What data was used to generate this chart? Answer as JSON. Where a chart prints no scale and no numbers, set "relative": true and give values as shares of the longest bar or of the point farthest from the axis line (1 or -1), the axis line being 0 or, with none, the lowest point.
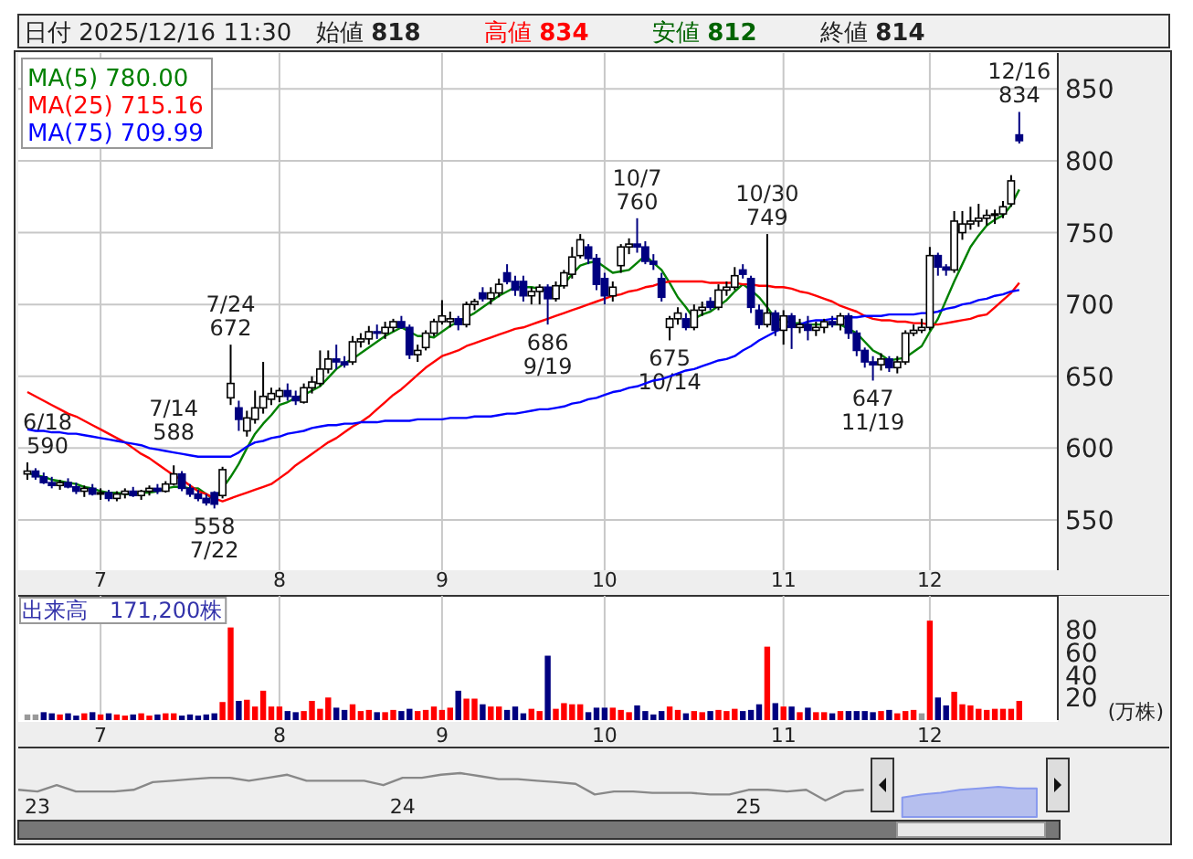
{
  "chart_data": [
    {
      "type": "candlestick",
      "annotations": [
        "日付 2025/12/16 11:30",
        "始値 **818**",
        "高値 **834**",
        "安値 **812**",
        "終値 **814**",
        "6/18\n590",
        "7/14\n588",
        "558\n7/22",
        "7/24\n672",
        "686\n9/19",
        "10/7\n760",
        "675\n10/14",
        "10/30\n749",
        "647\n11/19",
        "12/16\n834"
      ],
      "categories": [
        null,
        null,
        null,
        null,
        null,
        null,
        null,
        null,
        null,
        "7",
        null,
        null,
        null,
        null,
        null,
        null,
        null,
        null,
        null,
        null,
        null,
        null,
        null,
        null,
        null,
        null,
        null,
        null,
        null,
        null,
        null,
        "8",
        null,
        null,
        null,
        null,
        null,
        null,
        null,
        null,
        null,
        null,
        null,
        null,
        null,
        null,
        null,
        null,
        null,
        null,
        null,
        "9",
        null,
        null,
        null,
        null,
        null,
        null,
        null,
        null,
        null,
        null,
        null,
        null,
        null,
        null,
        null,
        null,
        null,
        null,
        null,
        "10",
        null,
        null,
        null,
        null,
        null,
        null,
        null,
        null,
        null,
        null,
        null,
        null,
        null,
        null,
        null,
        null,
        null,
        null,
        null,
        null,
        null,
        "11",
        null,
        null,
        null,
        null,
        null,
        null,
        null,
        null,
        null,
        null,
        null,
        null,
        null,
        null,
        null,
        null,
        null,
        "12",
        null,
        null,
        null,
        null,
        null,
        null,
        null,
        null,
        null,
        null,
        null
      ],
      "ohlc": [
        [
          582,
          590,
          578,
          584
        ],
        [
          584,
          586,
          578,
          580
        ],
        [
          580,
          583,
          575,
          576
        ],
        [
          576,
          580,
          572,
          574
        ],
        [
          574,
          578,
          571,
          576
        ],
        [
          576,
          579,
          572,
          573
        ],
        [
          573,
          576,
          568,
          570
        ],
        [
          570,
          574,
          566,
          572
        ],
        [
          572,
          575,
          567,
          568
        ],
        [
          568,
          572,
          564,
          569
        ],
        [
          569,
          571,
          563,
          565
        ],
        [
          565,
          570,
          563,
          568
        ],
        [
          568,
          572,
          565,
          570
        ],
        [
          570,
          573,
          566,
          567
        ],
        [
          567,
          571,
          564,
          570
        ],
        [
          570,
          574,
          567,
          572
        ],
        [
          572,
          575,
          568,
          570
        ],
        [
          570,
          577,
          569,
          575
        ],
        [
          575,
          588,
          574,
          582
        ],
        [
          582,
          584,
          570,
          572
        ],
        [
          572,
          575,
          566,
          568
        ],
        [
          568,
          571,
          563,
          565
        ],
        [
          565,
          568,
          560,
          562
        ],
        [
          569,
          570,
          558,
          561
        ],
        [
          567,
          587,
          565,
          585
        ],
        [
          635,
          672,
          630,
          645
        ],
        [
          628,
          633,
          612,
          620
        ],
        [
          612,
          626,
          608,
          621
        ],
        [
          620,
          640,
          617,
          628
        ],
        [
          628,
          660,
          624,
          636
        ],
        [
          634,
          642,
          630,
          638
        ],
        [
          636,
          642,
          632,
          640
        ],
        [
          640,
          645,
          633,
          636
        ],
        [
          636,
          640,
          630,
          633
        ],
        [
          632,
          645,
          631,
          642
        ],
        [
          642,
          650,
          638,
          646
        ],
        [
          645,
          668,
          643,
          655
        ],
        [
          655,
          668,
          652,
          662
        ],
        [
          662,
          672,
          655,
          660
        ],
        [
          660,
          664,
          656,
          658
        ],
        [
          660,
          678,
          658,
          674
        ],
        [
          674,
          680,
          670,
          676
        ],
        [
          676,
          685,
          672,
          681
        ],
        [
          681,
          686,
          676,
          680
        ],
        [
          680,
          688,
          676,
          684
        ],
        [
          684,
          690,
          681,
          688
        ],
        [
          688,
          692,
          683,
          684
        ],
        [
          684,
          686,
          662,
          665
        ],
        [
          665,
          672,
          660,
          668
        ],
        [
          670,
          682,
          668,
          680
        ],
        [
          680,
          690,
          678,
          688
        ],
        [
          688,
          703,
          686,
          692
        ],
        [
          688,
          695,
          684,
          690
        ],
        [
          690,
          692,
          682,
          686
        ],
        [
          686,
          702,
          684,
          700
        ],
        [
          700,
          704,
          696,
          702
        ],
        [
          708,
          712,
          702,
          704
        ],
        [
          704,
          712,
          700,
          708
        ],
        [
          708,
          718,
          705,
          714
        ],
        [
          722,
          728,
          714,
          716
        ],
        [
          716,
          720,
          706,
          710
        ],
        [
          716,
          720,
          702,
          706
        ],
        [
          706,
          712,
          700,
          709
        ],
        [
          709,
          714,
          700,
          712
        ],
        [
          712,
          714,
          686,
          704
        ],
        [
          704,
          716,
          702,
          713
        ],
        [
          713,
          724,
          711,
          722
        ],
        [
          721,
          740,
          718,
          733
        ],
        [
          734,
          749,
          732,
          745
        ],
        [
          740,
          742,
          728,
          732
        ],
        [
          732,
          735,
          710,
          714
        ],
        [
          718,
          722,
          700,
          706
        ],
        [
          706,
          716,
          702,
          712
        ],
        [
          727,
          742,
          722,
          740
        ],
        [
          740,
          746,
          735,
          742
        ],
        [
          742,
          760,
          736,
          740
        ],
        [
          740,
          744,
          728,
          730
        ],
        [
          730,
          735,
          724,
          728
        ],
        [
          718,
          722,
          702,
          705
        ],
        [
          684,
          692,
          675,
          690
        ],
        [
          690,
          698,
          686,
          694
        ],
        [
          690,
          694,
          682,
          684
        ],
        [
          684,
          700,
          682,
          696
        ],
        [
          696,
          702,
          692,
          698
        ],
        [
          702,
          705,
          696,
          698
        ],
        [
          698,
          714,
          696,
          710
        ],
        [
          710,
          716,
          706,
          712
        ],
        [
          712,
          726,
          710,
          720
        ],
        [
          724,
          728,
          718,
          721
        ],
        [
          718,
          720,
          694,
          698
        ],
        [
          696,
          700,
          683,
          686
        ],
        [
          686,
          749,
          684,
          694
        ],
        [
          694,
          696,
          678,
          682
        ],
        [
          682,
          696,
          672,
          692
        ],
        [
          692,
          694,
          669,
          684
        ],
        [
          684,
          690,
          680,
          686
        ],
        [
          686,
          692,
          675,
          682
        ],
        [
          682,
          688,
          678,
          684
        ],
        [
          684,
          690,
          680,
          688
        ],
        [
          688,
          692,
          684,
          686
        ],
        [
          686,
          694,
          682,
          692
        ],
        [
          692,
          694,
          676,
          680
        ],
        [
          680,
          682,
          664,
          668
        ],
        [
          668,
          670,
          656,
          660
        ],
        [
          660,
          664,
          647,
          658
        ],
        [
          658,
          666,
          654,
          662
        ],
        [
          662,
          664,
          653,
          656
        ],
        [
          656,
          664,
          652,
          660
        ],
        [
          660,
          682,
          658,
          680
        ],
        [
          680,
          686,
          678,
          682
        ],
        [
          682,
          690,
          680,
          684
        ],
        [
          684,
          740,
          682,
          734
        ],
        [
          734,
          736,
          720,
          726
        ],
        [
          726,
          728,
          720,
          724
        ],
        [
          724,
          765,
          722,
          758
        ],
        [
          750,
          765,
          745,
          756
        ],
        [
          756,
          768,
          752,
          758
        ],
        [
          758,
          770,
          754,
          760
        ],
        [
          760,
          766,
          755,
          762
        ],
        [
          762,
          766,
          756,
          763
        ],
        [
          763,
          772,
          760,
          768
        ],
        [
          770,
          790,
          768,
          786
        ],
        [
          818,
          834,
          812,
          814
        ]
      ],
      "series": [
        {
          "name": "MA(5)  780.00",
          "type": "line",
          "color": "#008000",
          "values": [
            583,
            581,
            580,
            578,
            577,
            576,
            575,
            573,
            572,
            570,
            569,
            569,
            568,
            568,
            569,
            569,
            570,
            572,
            573,
            573,
            572,
            572,
            568,
            564,
            572,
            580,
            589,
            600,
            610,
            617,
            623,
            630,
            632,
            635,
            637,
            640,
            643,
            649,
            655,
            659,
            662,
            666,
            670,
            674,
            678,
            681,
            684,
            681,
            678,
            678,
            677,
            681,
            685,
            688,
            691,
            694,
            698,
            702,
            706,
            709,
            712,
            712,
            712,
            711,
            709,
            712,
            714,
            721,
            727,
            729,
            730,
            726,
            722,
            723,
            724,
            729,
            734,
            729,
            724,
            715,
            705,
            698,
            690,
            693,
            695,
            699,
            703,
            709,
            714,
            710,
            705,
            698,
            690,
            689,
            687,
            687,
            686,
            686,
            686,
            686,
            686,
            683,
            680,
            674,
            668,
            665,
            661,
            662,
            663,
            667,
            671,
            681,
            690,
            703,
            716,
            728,
            740,
            748,
            755,
            759,
            762,
            769,
            780
          ]
        },
        {
          "name": "MA(25)  715.16",
          "type": "line",
          "color": "#ff0000",
          "values": [
            639,
            636,
            633,
            630,
            627,
            624,
            622,
            619,
            616,
            613,
            610,
            607,
            604,
            600,
            596,
            593,
            589,
            585,
            581,
            578,
            574,
            570,
            568,
            565,
            563,
            565,
            567,
            569,
            571,
            573,
            575,
            579,
            583,
            588,
            592,
            596,
            600,
            604,
            607,
            611,
            615,
            618,
            622,
            627,
            632,
            637,
            641,
            646,
            651,
            656,
            660,
            664,
            666,
            668,
            671,
            673,
            675,
            677,
            679,
            681,
            683,
            684,
            686,
            688,
            690,
            692,
            694,
            696,
            698,
            700,
            702,
            704,
            706,
            707,
            709,
            710,
            712,
            713,
            715,
            716,
            716,
            716,
            716,
            716,
            715,
            715,
            715,
            715,
            714,
            714,
            713,
            713,
            712,
            712,
            711,
            709,
            708,
            706,
            704,
            702,
            699,
            697,
            695,
            692,
            690,
            689,
            689,
            688,
            688,
            687,
            687,
            686,
            686,
            687,
            688,
            689,
            690,
            692,
            693,
            698,
            703,
            708,
            715
          ]
        },
        {
          "name": "MA(75)  709.99",
          "type": "line",
          "color": "#0000ff",
          "values": [
            613,
            612,
            612,
            611,
            611,
            610,
            610,
            609,
            608,
            607,
            606,
            605,
            604,
            603,
            602,
            600,
            599,
            598,
            597,
            596,
            595,
            594,
            594,
            594,
            594,
            594,
            597,
            601,
            604,
            605,
            607,
            608,
            610,
            611,
            612,
            614,
            615,
            616,
            616,
            617,
            617,
            618,
            618,
            618,
            619,
            619,
            619,
            619,
            620,
            620,
            620,
            620,
            621,
            621,
            621,
            622,
            622,
            622,
            623,
            624,
            624,
            625,
            626,
            627,
            627,
            628,
            629,
            631,
            632,
            634,
            635,
            637,
            639,
            640,
            642,
            643,
            645,
            647,
            648,
            650,
            652,
            654,
            655,
            657,
            659,
            661,
            662,
            664,
            668,
            671,
            675,
            678,
            681,
            684,
            685,
            686,
            688,
            689,
            689,
            690,
            690,
            691,
            691,
            692,
            692,
            692,
            693,
            693,
            693,
            693,
            694,
            694,
            695,
            697,
            698,
            700,
            701,
            703,
            704,
            706,
            707,
            709,
            710
          ]
        }
      ],
      "ylim": [
        515,
        875
      ],
      "yticks": [
        550,
        600,
        650,
        700,
        750,
        800,
        850
      ],
      "grid": true,
      "legend": "top left"
    },
    {
      "type": "bar",
      "title": "出来高　171,200株",
      "ylabel": "(万株)",
      "categories": [
        null,
        null,
        null,
        null,
        null,
        null,
        null,
        null,
        null,
        "7",
        null,
        null,
        null,
        null,
        null,
        null,
        null,
        null,
        null,
        null,
        null,
        null,
        null,
        null,
        null,
        null,
        null,
        null,
        null,
        null,
        null,
        "8",
        null,
        null,
        null,
        null,
        null,
        null,
        null,
        null,
        null,
        null,
        null,
        null,
        null,
        null,
        null,
        null,
        null,
        null,
        null,
        "9",
        null,
        null,
        null,
        null,
        null,
        null,
        null,
        null,
        null,
        null,
        null,
        null,
        null,
        null,
        null,
        null,
        null,
        null,
        null,
        "10",
        null,
        null,
        null,
        null,
        null,
        null,
        null,
        null,
        null,
        null,
        null,
        null,
        null,
        null,
        null,
        null,
        null,
        null,
        null,
        null,
        null,
        "11",
        null,
        null,
        null,
        null,
        null,
        null,
        null,
        null,
        null,
        null,
        null,
        null,
        null,
        null,
        null,
        null,
        null,
        "12",
        null,
        null,
        null,
        null,
        null,
        null,
        null,
        null,
        null,
        null,
        null
      ],
      "values": [
        5,
        5,
        7,
        6,
        5,
        6,
        4,
        6,
        7,
        5,
        6,
        5,
        4,
        5,
        6,
        4,
        5,
        6,
        6,
        4,
        5,
        4,
        5,
        6,
        16,
        82,
        17,
        18,
        12,
        26,
        12,
        12,
        8,
        7,
        8,
        17,
        10,
        20,
        11,
        9,
        14,
        8,
        9,
        7,
        7,
        9,
        8,
        10,
        8,
        9,
        12,
        9,
        11,
        26,
        19,
        19,
        14,
        12,
        12,
        9,
        12,
        6,
        10,
        8,
        57,
        10,
        15,
        14,
        14,
        7,
        11,
        11,
        11,
        9,
        7,
        13,
        8,
        5,
        8,
        12,
        9,
        6,
        8,
        7,
        8,
        9,
        8,
        10,
        8,
        9,
        14,
        65,
        15,
        12,
        12,
        7,
        11,
        7,
        7,
        6,
        8,
        8,
        8,
        8,
        7,
        8,
        9,
        6,
        8,
        9,
        6,
        88,
        20,
        13,
        25,
        14,
        13,
        10,
        9,
        10,
        10,
        10,
        17
      ],
      "colors": [
        "#999999",
        "#999999",
        "#000080",
        "#000080",
        "#ff0000",
        "#000080",
        "#000080",
        "#ff0000",
        "#000080",
        "#ff0000",
        "#000080",
        "#ff0000",
        "#ff0000",
        "#000080",
        "#ff0000",
        "#ff0000",
        "#000080",
        "#ff0000",
        "#ff0000",
        "#000080",
        "#000080",
        "#000080",
        "#000080",
        "#000080",
        "#ff0000",
        "#ff0000",
        "#000080",
        "#ff0000",
        "#ff0000",
        "#ff0000",
        "#ff0000",
        "#ff0000",
        "#000080",
        "#000080",
        "#ff0000",
        "#ff0000",
        "#ff0000",
        "#ff0000",
        "#000080",
        "#000080",
        "#ff0000",
        "#ff0000",
        "#ff0000",
        "#000080",
        "#ff0000",
        "#ff0000",
        "#000080",
        "#000080",
        "#ff0000",
        "#ff0000",
        "#ff0000",
        "#ff0000",
        "#ff0000",
        "#000080",
        "#ff0000",
        "#ff0000",
        "#000080",
        "#ff0000",
        "#ff0000",
        "#000080",
        "#000080",
        "#000080",
        "#ff0000",
        "#ff0000",
        "#000080",
        "#ff0000",
        "#ff0000",
        "#ff0000",
        "#ff0000",
        "#000080",
        "#000080",
        "#000080",
        "#ff0000",
        "#ff0000",
        "#ff0000",
        "#000080",
        "#000080",
        "#000080",
        "#000080",
        "#ff0000",
        "#ff0000",
        "#000080",
        "#ff0000",
        "#ff0000",
        "#000080",
        "#ff0000",
        "#ff0000",
        "#ff0000",
        "#000080",
        "#000080",
        "#000080",
        "#ff0000",
        "#000080",
        "#ff0000",
        "#000080",
        "#ff0000",
        "#000080",
        "#ff0000",
        "#ff0000",
        "#000080",
        "#ff0000",
        "#000080",
        "#000080",
        "#000080",
        "#000080",
        "#ff0000",
        "#000080",
        "#ff0000",
        "#ff0000",
        "#ff0000",
        "#999999",
        "#ff0000",
        "#000080",
        "#000080",
        "#ff0000",
        "#ff0000",
        "#ff0000",
        "#ff0000",
        "#ff0000",
        "#ff0000",
        "#ff0000",
        "#ff0000",
        "#ff0000"
      ],
      "ylim": [
        0,
        110
      ],
      "yticks": [
        20,
        40,
        60,
        80
      ],
      "grid": "x"
    },
    {
      "type": "line",
      "relative": true,
      "categories": [
        null,
        "23",
        null,
        null,
        null,
        null,
        null,
        null,
        null,
        null,
        null,
        null,
        null,
        null,
        null,
        null,
        null,
        null,
        null,
        null,
        "24",
        null,
        null,
        null,
        null,
        null,
        null,
        null,
        null,
        null,
        null,
        null,
        null,
        null,
        null,
        null,
        null,
        null,
        "25",
        null,
        null,
        null,
        null,
        null,
        null,
        null,
        null,
        null,
        null,
        null,
        null,
        null,
        null,
        null,
        null
      ],
      "series": [
        {
          "type": "line",
          "color": "#888888",
          "values": [
            0.39,
            0.33,
            0.56,
            0.33,
            0.33,
            0.33,
            0.39,
            0.67,
            0.72,
            0.78,
            0.83,
            0.83,
            0.72,
            0.83,
            0.94,
            0.72,
            0.72,
            0.72,
            0.72,
            0.56,
            0.83,
            0.83,
            0.94,
            1,
            0.89,
            0.78,
            0.78,
            0.72,
            0.67,
            0.61,
            0.22,
            0.33,
            0.33,
            0.28,
            0.28,
            0.28,
            0.22,
            0.22,
            0.39,
            0.39,
            0.33,
            0.39,
            0,
            0.33,
            0.39,
            null,
            null,
            null,
            null,
            null,
            null,
            null,
            null,
            null,
            null
          ]
        },
        {
          "type": "area",
          "color": "#8899ee",
          "values": [
            null,
            null,
            null,
            null,
            null,
            null,
            null,
            null,
            null,
            null,
            null,
            null,
            null,
            null,
            null,
            null,
            null,
            null,
            null,
            null,
            null,
            null,
            null,
            null,
            null,
            null,
            null,
            null,
            null,
            null,
            null,
            null,
            null,
            null,
            null,
            null,
            null,
            null,
            null,
            null,
            null,
            null,
            null,
            null,
            null,
            null,
            0.11,
            0.22,
            0.28,
            0.39,
            0.44,
            0.5,
            0.44,
            0.44,
            null
          ]
        }
      ]
    }
  ]
}
